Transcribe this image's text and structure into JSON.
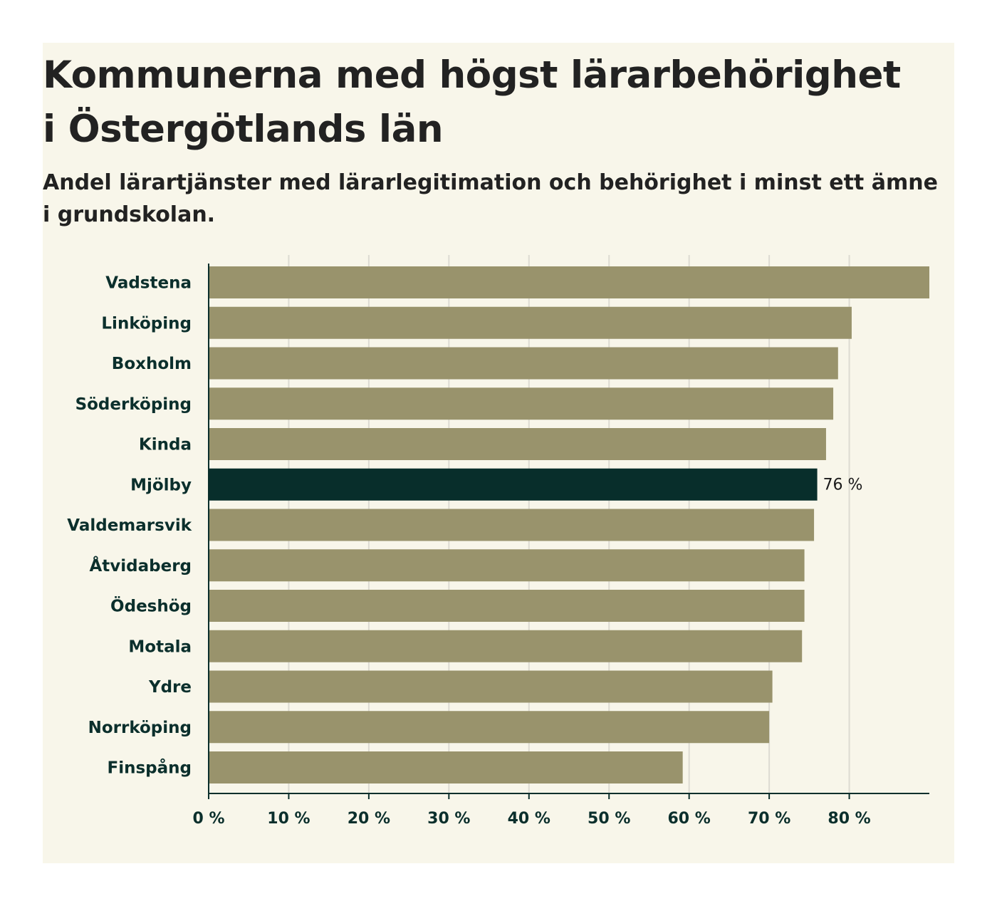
{
  "chart_data": {
    "type": "bar",
    "orientation": "horizontal",
    "title": "Kommunerna med högst lärarbehörighet i Östergötlands län",
    "subtitle": "Andel lärartjänster med lärarlegitimation och behörighet i minst ett ämne i grundskolan.",
    "categories": [
      "Vadstena",
      "Linköping",
      "Boxholm",
      "Söderköping",
      "Kinda",
      "Mjölby",
      "Valdemarsvik",
      "Åtvidaberg",
      "Ödeshög",
      "Motala",
      "Ydre",
      "Norrköping",
      "Finspång"
    ],
    "values": [
      90,
      80.3,
      78.6,
      78,
      77.1,
      76,
      75.6,
      74.4,
      74.4,
      74.1,
      70.4,
      70,
      59.2
    ],
    "highlight": {
      "category": "Mjölby",
      "label": "76 %"
    },
    "xlim": [
      0,
      90
    ],
    "xticks": [
      0,
      10,
      20,
      30,
      40,
      50,
      60,
      70,
      80
    ],
    "xtick_labels": [
      "0 %",
      "10 %",
      "20 %",
      "30 %",
      "40 %",
      "50 %",
      "60 %",
      "70 %",
      "80 %"
    ],
    "grid": true,
    "colors": {
      "bar": "#99936c",
      "highlight": "#082e2b",
      "grid": "#dddbd2",
      "axis": "#0b2f2c",
      "background": "#f8f6ea"
    }
  }
}
